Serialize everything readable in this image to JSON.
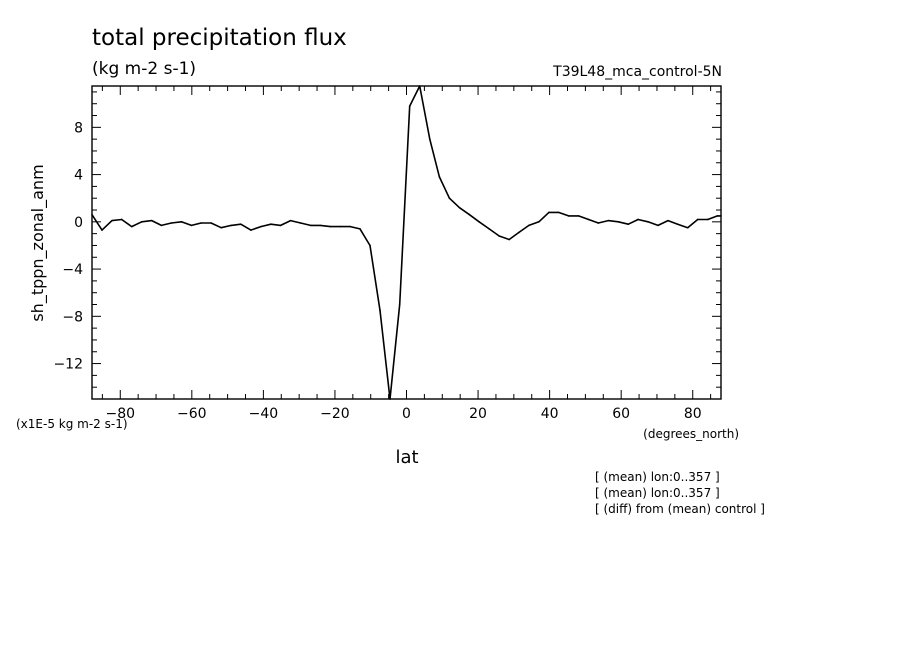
{
  "title": "total precipitation flux",
  "units": "(kg m-2 s-1)",
  "dataset": "T39L48_mca_control-5N",
  "scale_note": "(x1E-5 kg m-2 s-1)",
  "x_units": "(degrees_north)",
  "notes": [
    "[ (mean) lon:0..357 ]",
    "[ (mean) lon:0..357 ]",
    "[ (diff) from (mean) control ]"
  ],
  "chart_data": {
    "type": "line",
    "title": "total precipitation flux",
    "xlabel": "lat",
    "ylabel": "sh_tppn_zonal_anm",
    "xlim": [
      -87.9,
      87.9
    ],
    "ylim": [
      -15,
      11.5
    ],
    "x_ticks": [
      -80,
      -60,
      -40,
      -20,
      0,
      20,
      40,
      60,
      80
    ],
    "y_ticks": [
      -12,
      -8,
      -4,
      0,
      4,
      8
    ],
    "grid": false,
    "series": [
      {
        "x": [
          -87.9,
          -85.1,
          -82.3,
          -79.6,
          -76.8,
          -74.0,
          -71.2,
          -68.5,
          -65.7,
          -62.9,
          -60.1,
          -57.4,
          -54.6,
          -51.8,
          -49.0,
          -46.3,
          -43.5,
          -40.7,
          -37.9,
          -35.2,
          -32.4,
          -29.6,
          -26.8,
          -24.1,
          -21.3,
          -18.5,
          -15.7,
          -13.0,
          -10.2,
          -7.4,
          -4.6,
          -1.9,
          0.9,
          3.7,
          6.5,
          9.2,
          12.0,
          14.8,
          17.6,
          20.3,
          23.1,
          25.9,
          28.7,
          31.4,
          34.2,
          37.0,
          39.8,
          42.5,
          45.3,
          48.1,
          50.9,
          53.6,
          56.4,
          59.2,
          62.0,
          64.7,
          67.5,
          70.3,
          73.1,
          75.8,
          78.6,
          81.4,
          84.2,
          86.9,
          87.9
        ],
        "y": [
          0.6,
          -0.7,
          0.1,
          0.2,
          -0.4,
          0.0,
          0.1,
          -0.3,
          -0.1,
          0.0,
          -0.3,
          -0.1,
          -0.1,
          -0.5,
          -0.3,
          -0.2,
          -0.7,
          -0.4,
          -0.2,
          -0.3,
          0.1,
          -0.1,
          -0.3,
          -0.3,
          -0.4,
          -0.4,
          -0.4,
          -0.6,
          -2.0,
          -7.5,
          -15.0,
          -7.0,
          9.8,
          11.5,
          7.0,
          3.8,
          2.0,
          1.2,
          0.6,
          0.0,
          -0.6,
          -1.2,
          -1.5,
          -0.9,
          -0.3,
          0.0,
          0.8,
          0.8,
          0.5,
          0.5,
          0.2,
          -0.1,
          0.1,
          0.0,
          -0.2,
          0.2,
          0.0,
          -0.3,
          0.1,
          -0.2,
          -0.5,
          0.2,
          0.2,
          0.5,
          0.5
        ]
      }
    ]
  }
}
